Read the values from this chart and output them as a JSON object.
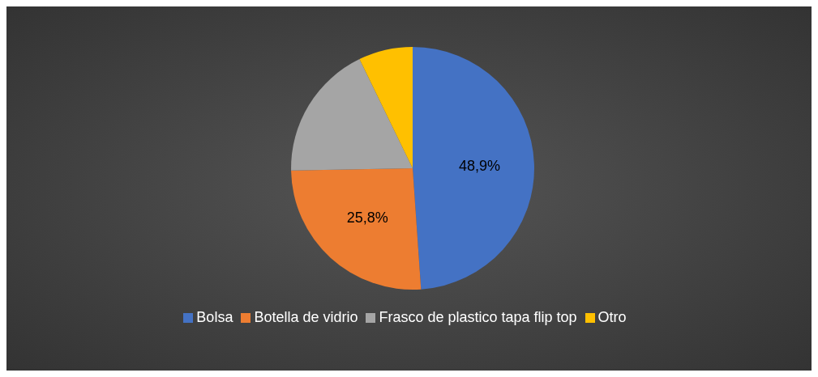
{
  "chart_data": {
    "type": "pie",
    "categories": [
      "Bolsa",
      "Botella de vidrio",
      "Frasco de plastico tapa flip top",
      "Otro"
    ],
    "values": [
      48.9,
      25.8,
      18.1,
      7.2
    ],
    "value_labels": [
      "48,9%",
      "25,8%",
      null,
      null
    ],
    "colors": [
      "#4472c4",
      "#ed7d31",
      "#a5a5a5",
      "#ffc000"
    ],
    "legend": "bottom"
  }
}
